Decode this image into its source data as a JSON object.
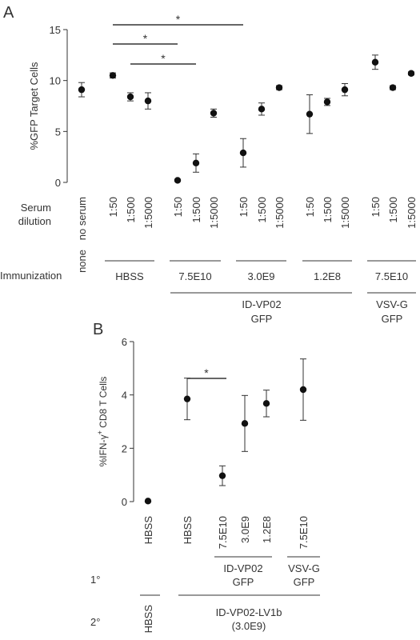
{
  "chart_data": [
    {
      "panel": "A",
      "type": "scatter",
      "ylabel": "%GFP Target Cells",
      "ylim": [
        0,
        15
      ],
      "yticks": [
        "0",
        "5",
        "10",
        "15"
      ],
      "categories": [
        "no serum",
        "1:50",
        "1:500",
        "1:5000",
        "1:50",
        "1:500",
        "1:5000",
        "1:50",
        "1:500",
        "1:5000",
        "1:50",
        "1:500",
        "1:5000",
        "1:50",
        "1:500",
        "1:5000"
      ],
      "values": [
        9.1,
        10.5,
        8.4,
        8.0,
        0.2,
        1.9,
        6.8,
        2.9,
        7.2,
        9.3,
        6.7,
        7.9,
        9.1,
        11.8,
        9.3,
        10.7
      ],
      "errors": [
        0.7,
        0.25,
        0.4,
        0.8,
        0.1,
        0.9,
        0.4,
        1.4,
        0.6,
        0.2,
        1.9,
        0.35,
        0.6,
        0.7,
        0.2,
        0.15
      ],
      "row_labels": {
        "serum_line1": "Serum",
        "serum_line2": "dilution",
        "immunization": "Immunization"
      },
      "groups": [
        {
          "label": "none"
        },
        {
          "label": "HBSS"
        },
        {
          "label": "7.5E10"
        },
        {
          "label": "3.0E9"
        },
        {
          "label": "1.2E8"
        },
        {
          "label": "7.5E10"
        }
      ],
      "supergroups": [
        {
          "line1": "ID-VP02",
          "line2": "GFP"
        },
        {
          "line1": "VSV-G",
          "line2": "GFP"
        }
      ],
      "significance": [
        "*",
        "*",
        "*"
      ]
    },
    {
      "panel": "B",
      "type": "scatter",
      "ylabel_main": "%IFN-",
      "ylabel_gamma": "γ",
      "ylabel_sup": "+",
      "ylabel_tail": "CD8 T Cells",
      "ylim": [
        0,
        6
      ],
      "yticks": [
        "0",
        "2",
        "4",
        "6"
      ],
      "categories": [
        "HBSS",
        "HBSS",
        "7.5E10",
        "3.0E9",
        "1.2E8",
        "7.5E10"
      ],
      "values": [
        0.02,
        3.85,
        0.97,
        2.93,
        3.68,
        4.2
      ],
      "errors": [
        0.0,
        0.78,
        0.37,
        1.05,
        0.5,
        1.15
      ],
      "primary_label": "1°",
      "secondary_label": "2°",
      "primary_groups": [
        {
          "line1": "ID-VP02",
          "line2": "GFP"
        },
        {
          "line1": "VSV-G",
          "line2": "GFP"
        }
      ],
      "secondary_groups": [
        {
          "line1": "HBSS",
          "line2": ""
        },
        {
          "line1": "ID-VP02-LV1b",
          "line2": "(3.0E9)"
        }
      ],
      "significance": [
        "*"
      ]
    }
  ],
  "panel_labels": [
    "A",
    "B"
  ]
}
